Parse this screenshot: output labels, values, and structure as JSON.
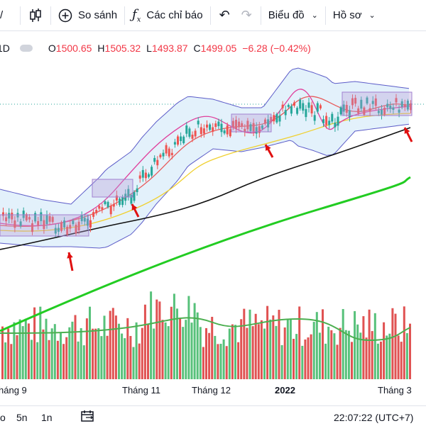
{
  "toolbar": {
    "period_fragment": "/",
    "compare_label": "So sánh",
    "indicators_label": "Các chỉ báo",
    "chart_type_label": "Biểu đồ",
    "profile_label": "Hồ sơ"
  },
  "legend": {
    "interval": "1D",
    "open_key": "O",
    "open": "1500.65",
    "high_key": "H",
    "high": "1505.32",
    "low_key": "L",
    "low": "1493.87",
    "close_key": "C",
    "close": "1499.05",
    "change": "−6.28 (−0.42%)"
  },
  "time_axis": {
    "labels": [
      "háng 9",
      "Tháng 11",
      "Tháng 12",
      "2022",
      "Tháng 3"
    ]
  },
  "bottom_bar": {
    "range_1": "o",
    "range_2": "5n",
    "range_3": "1n",
    "clock": "22:07:22 (UTC+7)"
  },
  "colors": {
    "up": "#26a69a",
    "down": "#ef5350",
    "ma_long": "#22cc22",
    "ma_mid": "#111111",
    "bollinger": "#5c5cc8",
    "fast": "#e0409c",
    "slow_red": "#e85a5a",
    "slow_yellow": "#f0d030",
    "box": "#b59bd6",
    "arrow": "#e01010",
    "vol_ma": "#4caf50"
  }
}
